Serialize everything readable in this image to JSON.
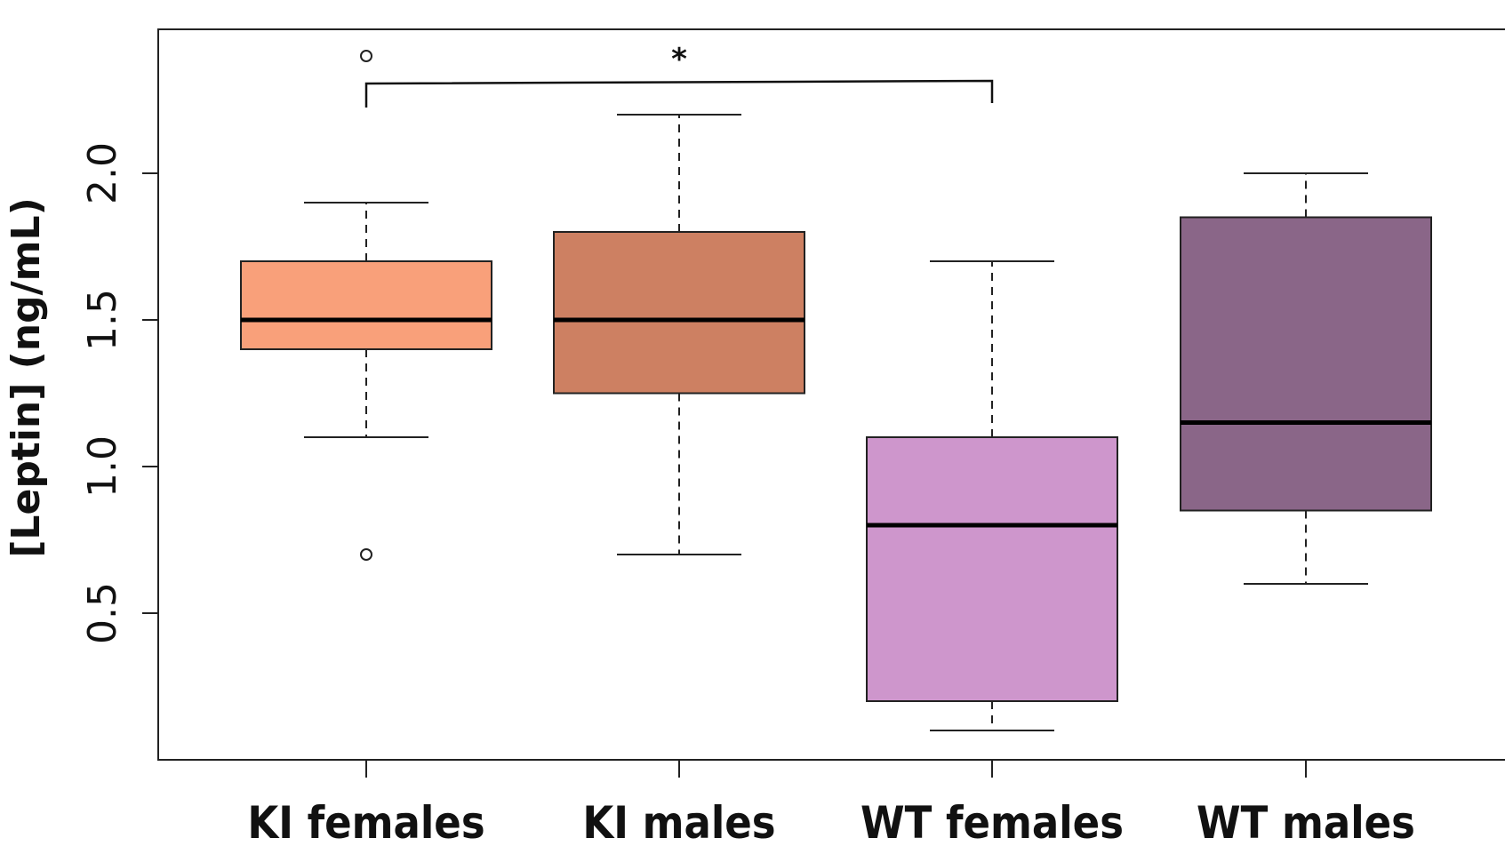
{
  "chart_data": {
    "type": "boxplot",
    "ylabel": "[Leptin] (ng/mL)",
    "xlabel": "",
    "title": "",
    "ylim": [
      0,
      2.5
    ],
    "yticks": [
      "0.5",
      "1.0",
      "1.5",
      "2.0"
    ],
    "grid": false,
    "categories": [
      "KI females",
      "KI males",
      "WT females",
      "WT males"
    ],
    "boxes": [
      {
        "name": "KI females",
        "whisker_low": 1.1,
        "q1": 1.4,
        "median": 1.5,
        "q3": 1.7,
        "whisker_high": 1.9,
        "outliers": [
          0.7,
          2.4
        ],
        "color": "#F9A07A"
      },
      {
        "name": "KI males",
        "whisker_low": 0.7,
        "q1": 1.25,
        "median": 1.5,
        "q3": 1.8,
        "whisker_high": 2.2,
        "outliers": [],
        "color": "#CD8062"
      },
      {
        "name": "WT females",
        "whisker_low": 0.1,
        "q1": 0.2,
        "median": 0.8,
        "q3": 1.1,
        "whisker_high": 1.7,
        "outliers": [],
        "color": "#CE96CC"
      },
      {
        "name": "WT males",
        "whisker_low": 0.6,
        "q1": 0.85,
        "median": 1.15,
        "q3": 1.85,
        "whisker_high": 2.0,
        "outliers": [],
        "color": "#8A6688"
      }
    ],
    "significance": [
      {
        "from": "KI females",
        "to": "WT females",
        "label": "*"
      }
    ]
  }
}
